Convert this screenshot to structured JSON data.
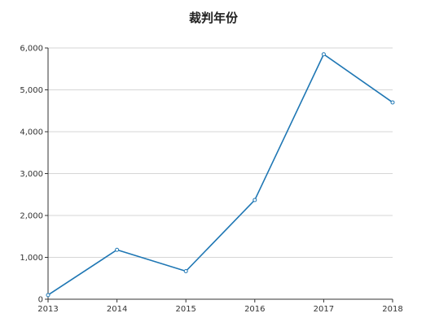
{
  "chart_data": {
    "type": "line",
    "title": "裁判年份",
    "xlabel": "",
    "ylabel": "",
    "x": [
      "2013",
      "2014",
      "2015",
      "2016",
      "2017",
      "2018"
    ],
    "series": [
      {
        "values": [
          100,
          1180,
          670,
          2370,
          5850,
          4700
        ]
      }
    ],
    "ylim": [
      0,
      6000
    ],
    "yticks": [
      0,
      1000,
      2000,
      3000,
      4000,
      5000,
      6000
    ],
    "ytick_labels": [
      "0",
      "1,000",
      "2,000",
      "3,000",
      "4,000",
      "5,000",
      "6,000"
    ],
    "grid": "horizontal",
    "legend": "none",
    "line_color": "#1f77b4"
  }
}
